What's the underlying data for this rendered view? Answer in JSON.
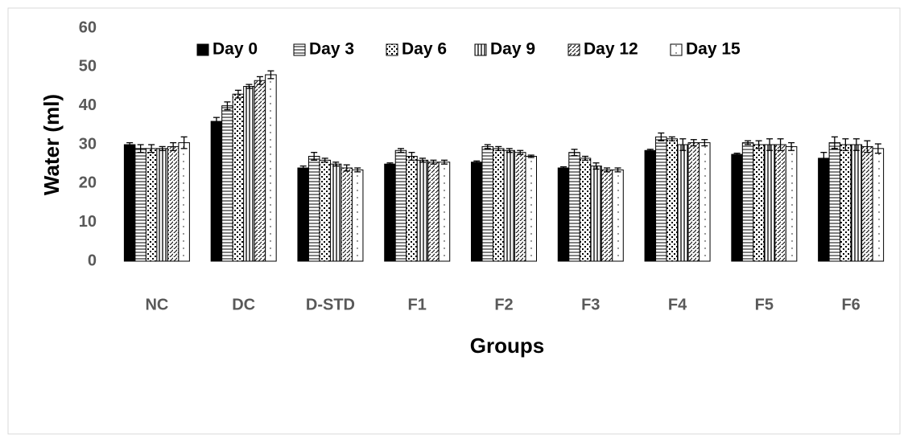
{
  "chart_data": {
    "type": "bar",
    "ylabel": "Water (ml)",
    "xlabel": "Groups",
    "categories": [
      "NC",
      "DC",
      "D-STD",
      "F1",
      "F2",
      "F3",
      "F4",
      "F5",
      "F6"
    ],
    "ylim": [
      0,
      60
    ],
    "yticks": [
      0,
      10,
      20,
      30,
      40,
      50,
      60
    ],
    "grid": false,
    "legend": "top",
    "series": [
      {
        "name": "Day 0",
        "color": "#000000",
        "pattern": "solid",
        "values": [
          30,
          36,
          24,
          25,
          25.5,
          24,
          28.5,
          27.5,
          26.5
        ],
        "errors": [
          0.5,
          1,
          0.5,
          0.3,
          0.3,
          0.3,
          0.3,
          0.3,
          1.5
        ]
      },
      {
        "name": "Day 3",
        "color": "#000000",
        "pattern": "horizontal",
        "values": [
          29,
          40,
          27,
          28.5,
          29.5,
          28,
          32,
          30.5,
          30.5
        ],
        "errors": [
          1,
          1,
          1,
          0.5,
          0.5,
          0.8,
          1,
          0.5,
          1.5
        ]
      },
      {
        "name": "Day 6",
        "color": "#000000",
        "pattern": "crosshatch",
        "values": [
          29,
          43,
          26,
          27,
          29,
          26.5,
          31.5,
          30,
          30
        ],
        "errors": [
          1,
          1,
          0.5,
          1,
          0.5,
          0.5,
          0.5,
          1,
          1.5
        ]
      },
      {
        "name": "Day 9",
        "color": "#000000",
        "pattern": "vertical",
        "values": [
          29,
          45,
          25,
          26,
          28.5,
          24.5,
          30,
          30,
          30
        ],
        "errors": [
          0.5,
          0.5,
          0.5,
          0.5,
          0.5,
          0.8,
          1.5,
          1.5,
          1.5
        ]
      },
      {
        "name": "Day 12",
        "color": "#000000",
        "pattern": "diagonal",
        "values": [
          29.5,
          46.5,
          24,
          25.5,
          28,
          23.5,
          30.5,
          30,
          29.5
        ],
        "errors": [
          1,
          1,
          0.8,
          0.5,
          0.5,
          0.5,
          0.8,
          1.5,
          1.5
        ]
      },
      {
        "name": "Day 15",
        "color": "#000000",
        "pattern": "dots",
        "values": [
          30.5,
          48,
          23.5,
          25.5,
          27,
          23.5,
          30.5,
          29.5,
          29
        ],
        "errors": [
          1.5,
          1,
          0.5,
          0.5,
          0.3,
          0.5,
          0.8,
          1,
          1.2
        ]
      }
    ]
  }
}
